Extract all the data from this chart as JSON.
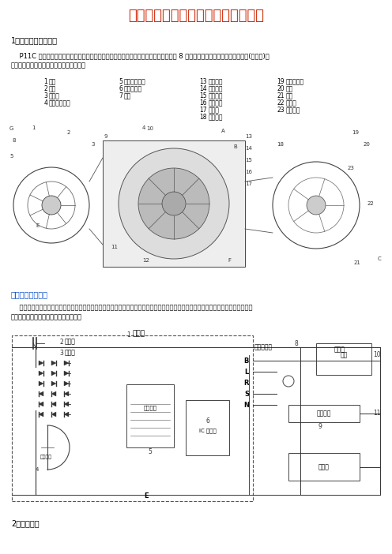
{
  "title": "交流发电机的结构特点及其工作原理",
  "title_color": "#cc2200",
  "title_fontsize": 13,
  "background_color": "#ffffff",
  "section1_heading": "1、发电机的结构特点",
  "para1_line1": "    P11C 型发动机所配的发电机，是国内外汽车广泛使用的三相硅整流交流发电机。通过 8 个二极管组成三级桥式全波整流电路(整流器)，",
  "para1_line2": "将三相绕组中产生的交流电转变为直流电。",
  "link_text": "其结构如图所示。",
  "link_color": "#1155cc",
  "para2_line1": "    把三相发电机各线圈的末端接在一起成为公共端点，又称为三相电源的中性点。从中性点引出的线称为中线，从三个线圈端端引出的线",
  "para2_line2": "称为相线。这种连接方式称为星形接法。",
  "section2_heading": "2、整流原理"
}
